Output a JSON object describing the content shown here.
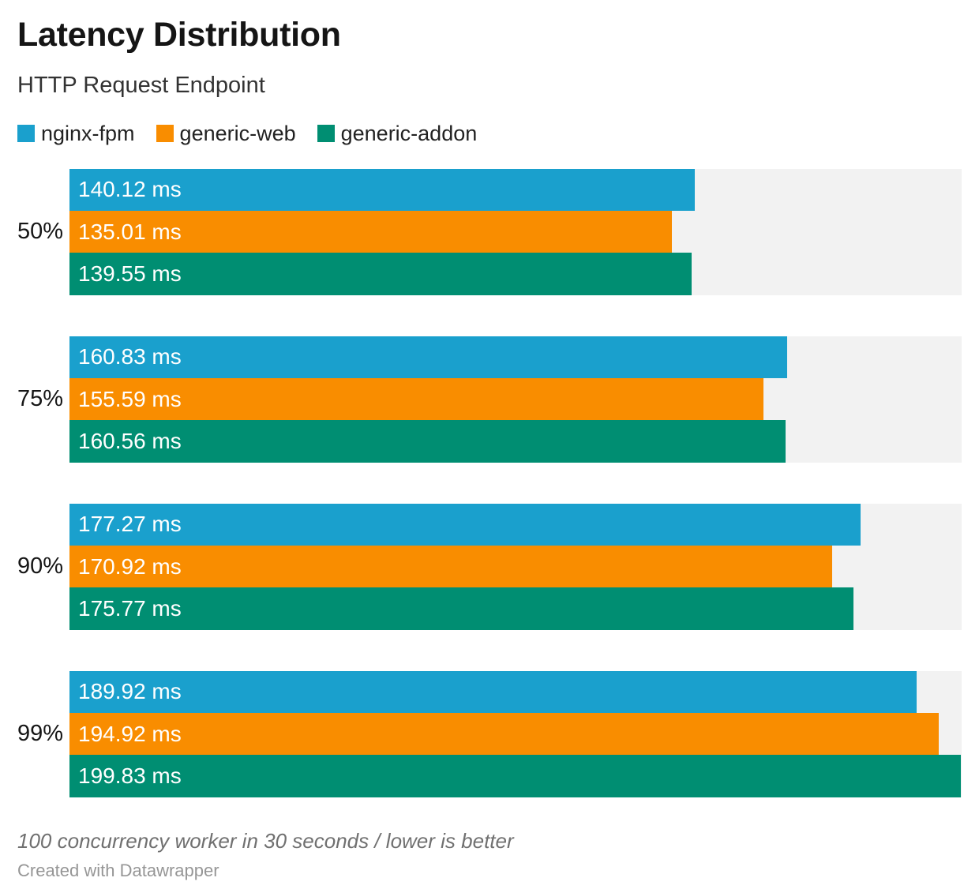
{
  "chart_data": {
    "type": "bar",
    "orientation": "horizontal",
    "title": "Latency Distribution",
    "subtitle": "HTTP Request Endpoint",
    "unit": "ms",
    "axis_max": 200,
    "grid": false,
    "legend_position": "top-left",
    "track_color": "#f2f2f2",
    "value_labels_inside_bars": true,
    "categories": [
      "50%",
      "75%",
      "90%",
      "99%"
    ],
    "series": [
      {
        "name": "nginx-fpm",
        "color": "#1aa0cd",
        "values": [
          140.12,
          160.83,
          177.27,
          189.92
        ]
      },
      {
        "name": "generic-web",
        "color": "#f98d00",
        "values": [
          135.01,
          155.59,
          170.92,
          194.92
        ]
      },
      {
        "name": "generic-addon",
        "color": "#008e72",
        "values": [
          139.55,
          160.56,
          175.77,
          199.83
        ]
      }
    ],
    "visible_value_labels": [
      [
        "140.12 ms",
        "135.01 ms",
        "139.55 ms"
      ],
      [
        "160.83 ms",
        "155.59 ms",
        "160.56 ms"
      ],
      [
        "177.27 ms",
        "170.92 ms",
        "175.77 ms"
      ],
      [
        "189.92 ms",
        "194.92 ms",
        "199.83 ms"
      ]
    ]
  },
  "footer": {
    "note": "100 concurrency worker in 30 seconds / lower is better",
    "attribution": "Created with Datawrapper"
  }
}
